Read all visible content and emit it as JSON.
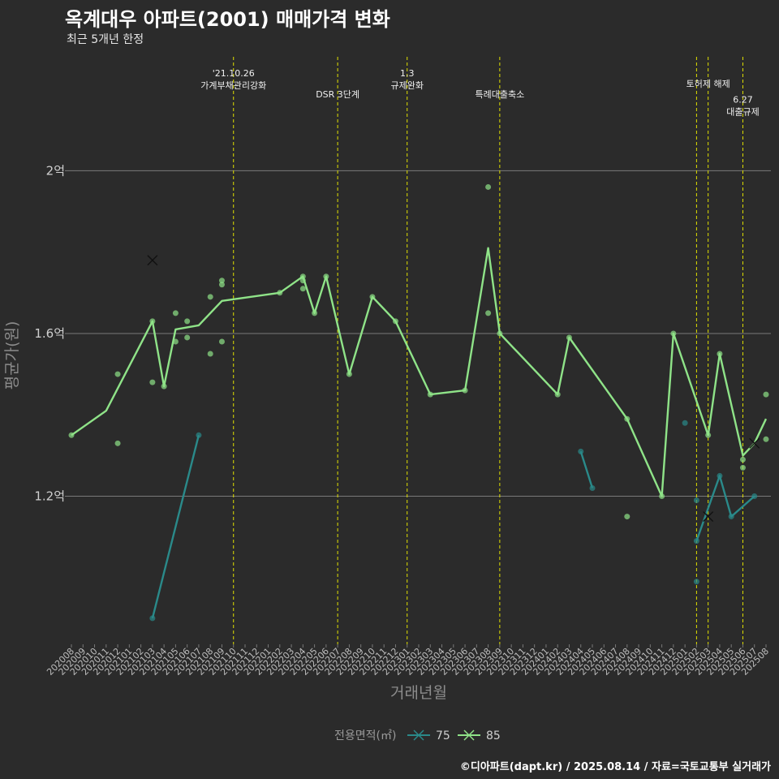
{
  "header": {
    "title": "옥계대우 아파트(2001) 매매가격 변화",
    "subtitle": "최근 5개년 한정"
  },
  "footer": {
    "caption": "©디아파트(dapt.kr) / 2025.08.14 / 자료=국토교통부 실거래가"
  },
  "colors": {
    "background": "#2b2b2b",
    "s75": "#2a8a8a",
    "s85": "#8fe388",
    "grid": "#7a7a7a",
    "vline": "#e0e000"
  },
  "chart_data": {
    "type": "line",
    "xlabel": "거래년월",
    "ylabel": "평균가(원)",
    "x_categories": [
      "202008",
      "202009",
      "202010",
      "202011",
      "202012",
      "202101",
      "202102",
      "202103",
      "202104",
      "202105",
      "202106",
      "202107",
      "202108",
      "202109",
      "202110",
      "202111",
      "202112",
      "202201",
      "202202",
      "202203",
      "202204",
      "202205",
      "202206",
      "202207",
      "202208",
      "202209",
      "202210",
      "202211",
      "202212",
      "202301",
      "202302",
      "202303",
      "202304",
      "202305",
      "202306",
      "202307",
      "202308",
      "202309",
      "202310",
      "202311",
      "202312",
      "202401",
      "202402",
      "202403",
      "202404",
      "202405",
      "202406",
      "202407",
      "202408",
      "202409",
      "202410",
      "202411",
      "202412",
      "202501",
      "202502",
      "202503",
      "202504",
      "202505",
      "202506",
      "202507",
      "202508"
    ],
    "y_ticks": [
      {
        "value": 1.2,
        "label": "1.2억"
      },
      {
        "value": 1.6,
        "label": "1.6억"
      },
      {
        "value": 2.0,
        "label": "2억"
      }
    ],
    "ylim": [
      0.836,
      2.28
    ],
    "grid": true,
    "legend": {
      "title": "전용면적(㎡)",
      "position": "bottom"
    },
    "series": [
      {
        "name": "75",
        "segments": [
          [
            [
              "202103",
              0.9
            ],
            [
              "202107",
              1.35
            ]
          ],
          [
            [
              "202404",
              1.31
            ],
            [
              "202405",
              1.22
            ]
          ],
          [
            [
              "202502",
              1.09
            ],
            [
              "202504",
              1.25
            ],
            [
              "202505",
              1.15
            ],
            [
              "202507",
              1.2
            ]
          ]
        ],
        "points": [
          [
            "202103",
            0.9
          ],
          [
            "202107",
            1.35
          ],
          [
            "202404",
            1.31
          ],
          [
            "202405",
            1.22
          ],
          [
            "202501",
            1.38
          ],
          [
            "202502",
            1.19
          ],
          [
            "202502",
            0.99
          ],
          [
            "202502",
            1.09
          ],
          [
            "202504",
            1.25
          ],
          [
            "202505",
            1.15
          ],
          [
            "202507",
            1.2
          ]
        ],
        "cross_points": [
          [
            "202503",
            1.15
          ]
        ]
      },
      {
        "name": "85",
        "line": [
          [
            "202008",
            1.35
          ],
          [
            "202011",
            1.41
          ],
          [
            "202103",
            1.63
          ],
          [
            "202104",
            1.47
          ],
          [
            "202105",
            1.61
          ],
          [
            "202107",
            1.62
          ],
          [
            "202109",
            1.68
          ],
          [
            "202202",
            1.7
          ],
          [
            "202204",
            1.74
          ],
          [
            "202205",
            1.65
          ],
          [
            "202206",
            1.74
          ],
          [
            "202208",
            1.5
          ],
          [
            "202210",
            1.69
          ],
          [
            "202212",
            1.63
          ],
          [
            "202303",
            1.45
          ],
          [
            "202306",
            1.46
          ],
          [
            "202308",
            1.81
          ],
          [
            "202309",
            1.6
          ],
          [
            "202402",
            1.45
          ],
          [
            "202403",
            1.59
          ],
          [
            "202408",
            1.39
          ],
          [
            "202411",
            1.2
          ],
          [
            "202412",
            1.6
          ],
          [
            "202503",
            1.35
          ],
          [
            "202504",
            1.55
          ],
          [
            "202506",
            1.3
          ],
          [
            "202507",
            1.33
          ],
          [
            "202508",
            1.39
          ]
        ],
        "points": [
          [
            "202008",
            1.35
          ],
          [
            "202012",
            1.5
          ],
          [
            "202012",
            1.33
          ],
          [
            "202103",
            1.48
          ],
          [
            "202103",
            1.63
          ],
          [
            "202104",
            1.47
          ],
          [
            "202105",
            1.65
          ],
          [
            "202105",
            1.58
          ],
          [
            "202106",
            1.63
          ],
          [
            "202106",
            1.59
          ],
          [
            "202108",
            1.69
          ],
          [
            "202108",
            1.55
          ],
          [
            "202109",
            1.73
          ],
          [
            "202109",
            1.72
          ],
          [
            "202109",
            1.58
          ],
          [
            "202202",
            1.7
          ],
          [
            "202204",
            1.74
          ],
          [
            "202204",
            1.73
          ],
          [
            "202204",
            1.71
          ],
          [
            "202205",
            1.65
          ],
          [
            "202206",
            1.74
          ],
          [
            "202208",
            1.5
          ],
          [
            "202210",
            1.69
          ],
          [
            "202212",
            1.63
          ],
          [
            "202303",
            1.45
          ],
          [
            "202306",
            1.46
          ],
          [
            "202308",
            1.96
          ],
          [
            "202308",
            1.65
          ],
          [
            "202309",
            1.6
          ],
          [
            "202402",
            1.45
          ],
          [
            "202403",
            1.59
          ],
          [
            "202408",
            1.39
          ],
          [
            "202408",
            1.15
          ],
          [
            "202411",
            1.2
          ],
          [
            "202412",
            1.6
          ],
          [
            "202503",
            1.35
          ],
          [
            "202504",
            1.55
          ],
          [
            "202506",
            1.27
          ],
          [
            "202506",
            1.29
          ],
          [
            "202508",
            1.45
          ],
          [
            "202508",
            1.34
          ]
        ],
        "cross_points": [
          [
            "202103",
            1.78
          ],
          [
            "202507",
            1.33
          ]
        ]
      }
    ],
    "annotations": [
      {
        "x": "202110",
        "lines": [
          "'21.10.26",
          "가계부채관리강화"
        ],
        "row": 0
      },
      {
        "x": "202207",
        "lines": [
          "DSR 3단계"
        ],
        "row": 2
      },
      {
        "x": "202301",
        "lines": [
          "1.3",
          "규제완화"
        ],
        "row": 0
      },
      {
        "x": "202309",
        "lines": [
          "특례대출축소"
        ],
        "row": 2
      },
      {
        "x": "202502",
        "lines": [],
        "row": 0
      },
      {
        "x": "202503",
        "lines": [
          "토허제 해제"
        ],
        "row": 1
      },
      {
        "x": "202506",
        "lines": [
          "6.27",
          "대출규제"
        ],
        "row": 2.5
      }
    ]
  }
}
